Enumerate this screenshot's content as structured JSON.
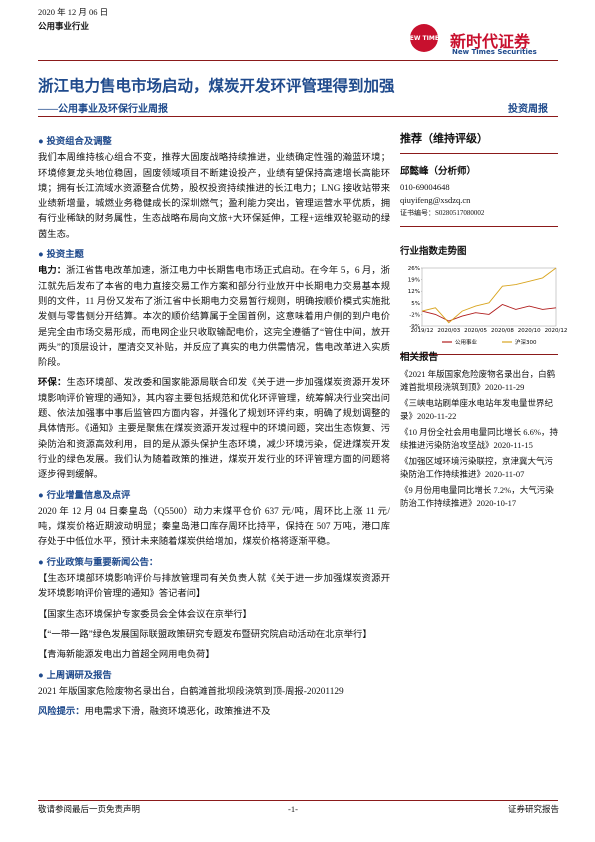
{
  "header": {
    "date": "2020 年 12 月 06 日",
    "industry": "公用事业行业",
    "logo_mark": "NEW TIMES",
    "logo_name": "新时代证券",
    "logo_en": "New Times Securities"
  },
  "title": "浙江电力售电市场启动，煤炭开发环评管理得到加强",
  "subtitle": "——公用事业及环保行业周报",
  "report_type": "投资周报",
  "sections": [
    {
      "heading": "投资组合及调整",
      "paragraphs": [
        {
          "text": "我们本周维持核心组合不变，推荐大固废战略持续推进，业绩确定性强的瀚蓝环境；环境修复龙头地位稳固，固废领域项目不断建设投产，业绩有望保持高速增长高能环境；拥有长江流域水资源整合优势，股权投资持续推进的长江电力；LNG 接收站带来业绩新增量，城燃业务稳健成长的深圳燃气；盈利能力突出，管理运营水平优质，拥有行业稀缺的财务属性，生态战略布局向文旅+大环保延伸，工程+运维双轮驱动的绿茵生态。"
        }
      ]
    },
    {
      "heading": "投资主题",
      "paragraphs": [
        {
          "label": "电力：",
          "text": "浙江省售电改革加速，浙江电力中长期售电市场正式启动。在今年 5，6 月，浙江就先后发布了本省的电力直接交易工作方案和部分行业放开中长期电力交易基本规则的文件，11 月份又发布了浙江省中长期电力交易暂行规则，明确按顺价模式实施批发侧与零售侧分开结算。本次的顺价结算属于全国首例，这意味着用户侧的到户电价是完全由市场交易形成，而电网企业只收取输配电价，这完全遵循了“管住中间，放开两头”的顶层设计，厘清交叉补贴，并反应了真实的电力供需情况，售电改革进入实质阶段。"
        },
        {
          "label": "环保：",
          "text": "生态环境部、发改委和国家能源局联合印发《关于进一步加强煤炭资源开发环境影响评价管理的通知》，其内容主要包括规范和优化环评管理，统筹解决行业突出问题、依法加强事中事后监管四方面内容，并强化了规划环评约束，明确了规划调整的具体情形。《通知》主要是聚焦在煤炭资源开发过程中的环境问题，突出生态恢复、污染防治和资源高效利用，目的是从源头保护生态环境，减少环境污染，促进煤炭开发行业的绿色发展。我们认为随着政策的推进，煤炭开发行业的环评管理方面的问题将逐步得到缓解。"
        }
      ]
    },
    {
      "heading": "行业增量信息及点评",
      "paragraphs": [
        {
          "text": "2020 年 12 月 04 日秦皇岛（Q5500）动力末煤平仓价 637 元/吨，周环比上涨 11 元/吨，煤炭价格近期波动明显；秦皇岛港口库存周环比持平，保持在 507 万吨，港口库存处于中低位水平，预计未来随着煤炭供给增加，煤炭价格将逐渐平稳。"
        }
      ]
    },
    {
      "heading": "行业政策与重要新闻公告：",
      "paragraphs": [
        {
          "text": "【生态环境部环境影响评价与排放管理司有关负责人就《关于进一步加强煤炭资源开发环境影响评价管理的通知》答记者问】"
        },
        {
          "text": "【国家生态环境保护专家委员会全体会议在京举行】"
        },
        {
          "text": "【“一带一路”绿色发展国际联盟政策研究专题发布暨研究院启动活动在北京举行】"
        },
        {
          "text": "【青海新能源发电出力首超全网用电负荷】"
        }
      ]
    },
    {
      "heading": "上周调研及报告",
      "paragraphs": [
        {
          "text": "2021 年版国家危险废物名录出台，白鹤滩首批坝段浇筑到顶-周报-20201129"
        },
        {
          "label": "风险提示：",
          "text": "用电需求下滑，融资环境恶化，政策推进不及"
        }
      ]
    }
  ],
  "sidebar": {
    "rating": "推荐（维持评级）",
    "analyst": "邱懿峰（分析师）",
    "phone": "010-69004648",
    "email": "qiuyifeng@xsdzq.cn",
    "cert": "证书编号：S0280517080002",
    "chart_title": "行业指数走势图",
    "related_title": "相关报告",
    "related": [
      {
        "title": "《2021 年版国家危险废物名录出台，白鹤滩首批坝段浇筑到顶》",
        "date": "2020-11-29"
      },
      {
        "title": "《三峡电站刷单座水电站年发电量世界纪录》",
        "date": "2020-11-22"
      },
      {
        "title": "《10 月份全社会用电量同比增长 6.6%，持续推进污染防治攻坚战》",
        "date": "2020-11-15"
      },
      {
        "title": "《加强区域环境污染联控，京津冀大气污染防治工作持续推进》",
        "date": "2020-11-07"
      },
      {
        "title": "《9 月份用电量同比增长 7.2%，大气污染防治工作持续推进》",
        "date": "2020-10-17"
      }
    ]
  },
  "chart_data": {
    "type": "line",
    "categories": [
      "2019/12",
      null,
      "2020/03",
      null,
      "2020/05",
      null,
      "2020/08",
      null,
      "2020/10",
      null,
      "2020/12"
    ],
    "series": [
      {
        "name": "公用事业",
        "color": "#b01c1c",
        "values": [
          0,
          -2,
          -6,
          -3,
          -1,
          -2,
          4,
          1,
          3,
          1,
          2
        ]
      },
      {
        "name": "沪深300",
        "color": "#d9a520",
        "values": [
          0,
          2,
          -7,
          0,
          3,
          5,
          15,
          16,
          18,
          20,
          26
        ]
      }
    ],
    "ylim": [
      -9,
      26
    ],
    "yticks": [
      {
        "value": 26,
        "label": "26%"
      },
      {
        "value": 19,
        "label": "19%"
      },
      {
        "value": 12,
        "label": "12%"
      },
      {
        "value": 5,
        "label": "5%"
      },
      {
        "value": -2,
        "label": "-2%"
      },
      {
        "value": -9,
        "label": "-9%"
      }
    ],
    "grid": false,
    "legend": "bottom"
  },
  "footer": {
    "disclaimer": "敬请参阅最后一页免责声明",
    "page": "-1-",
    "label": "证券研究报告"
  }
}
